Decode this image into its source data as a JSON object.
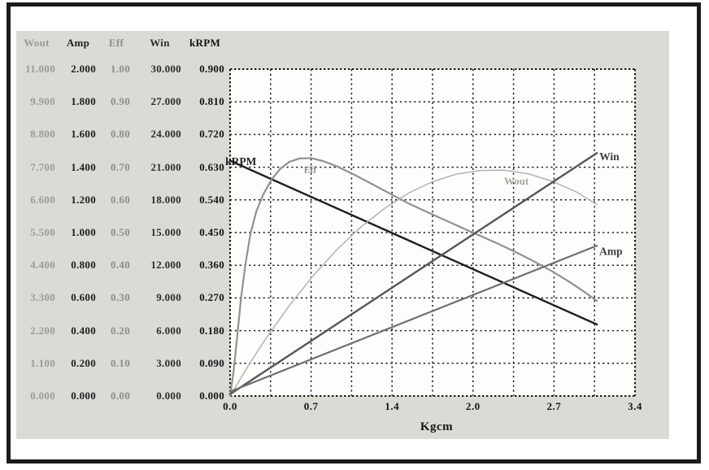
{
  "colors": {
    "frame": "#1b1b1b",
    "panel_bg": "#dbdbd6",
    "plot_bg": "#fdfdfc",
    "grid": "#1a1a1a",
    "tick_text": "#161616"
  },
  "table": {
    "columns": [
      {
        "name": "Wout",
        "color": "#9c9c96",
        "values": [
          "11.000",
          "9.900",
          "8.800",
          "7.700",
          "6.600",
          "5.500",
          "4.400",
          "3.300",
          "2.200",
          "1.100",
          "0.000"
        ]
      },
      {
        "name": "Amp",
        "color": "#1e1e1e",
        "values": [
          "2.000",
          "1.800",
          "1.600",
          "1.400",
          "1.200",
          "1.000",
          "0.800",
          "0.600",
          "0.400",
          "0.200",
          "0.000"
        ]
      },
      {
        "name": "Eff",
        "color": "#8e8e89",
        "values": [
          "1.00",
          "0.90",
          "0.80",
          "0.70",
          "0.60",
          "0.50",
          "0.40",
          "0.30",
          "0.20",
          "0.10",
          "0.00"
        ]
      },
      {
        "name": "Win",
        "color": "#2e2e2e",
        "values": [
          "30.000",
          "27.000",
          "24.000",
          "21.000",
          "18.000",
          "15.000",
          "12.000",
          "9.000",
          "6.000",
          "3.000",
          "0.000"
        ]
      },
      {
        "name": "kRPM",
        "color": "#141414",
        "values": [
          "0.900",
          "0.810",
          "0.720",
          "0.630",
          "0.540",
          "0.450",
          "0.360",
          "0.270",
          "0.180",
          "0.090",
          "0.000"
        ]
      }
    ]
  },
  "chart_data": {
    "type": "line",
    "title": "",
    "xlabel": "Kgcm",
    "ylabel": "",
    "xlim": [
      0,
      3.4
    ],
    "ylim": [
      0,
      0.9
    ],
    "x_divisions": 10,
    "y_divisions": 10,
    "grid": "dotted",
    "legend_position": "inline-labels",
    "x_ticks": [
      {
        "label": "0.0",
        "pos": 0.0
      },
      {
        "label": "0.7",
        "pos": 0.68
      },
      {
        "label": "1.4",
        "pos": 1.36
      },
      {
        "label": "2.0",
        "pos": 2.04
      },
      {
        "label": "2.7",
        "pos": 2.72
      },
      {
        "label": "3.4",
        "pos": 3.4
      }
    ],
    "series": [
      {
        "name": "kRPM",
        "axis_max": 0.9,
        "color": "#1f1f1f",
        "width": 2.4,
        "label": {
          "text": "kRPM",
          "x": -0.04,
          "v": 0.636,
          "color": "#1f1f1f",
          "size": 13.5
        },
        "points": [
          [
            0,
            0.648
          ],
          [
            3.08,
            0.197
          ]
        ]
      },
      {
        "name": "Eff",
        "axis_max": 1.0,
        "color": "#919191",
        "width": 2.2,
        "label": {
          "text": "Eff",
          "x": 0.62,
          "v": 0.615,
          "color": "#8c8c86",
          "size": 11.5
        },
        "points": [
          [
            0,
            0
          ],
          [
            0.03,
            0.07
          ],
          [
            0.06,
            0.165
          ],
          [
            0.09,
            0.265
          ],
          [
            0.13,
            0.365
          ],
          [
            0.17,
            0.445
          ],
          [
            0.22,
            0.508
          ],
          [
            0.28,
            0.556
          ],
          [
            0.35,
            0.597
          ],
          [
            0.42,
            0.625
          ],
          [
            0.5,
            0.645
          ],
          [
            0.58,
            0.654
          ],
          [
            0.68,
            0.655
          ],
          [
            0.78,
            0.647
          ],
          [
            0.9,
            0.632
          ],
          [
            1.05,
            0.608
          ],
          [
            1.2,
            0.582
          ],
          [
            1.35,
            0.556
          ],
          [
            1.5,
            0.53
          ],
          [
            1.65,
            0.507
          ],
          [
            1.8,
            0.485
          ],
          [
            1.95,
            0.463
          ],
          [
            2.1,
            0.441
          ],
          [
            2.25,
            0.419
          ],
          [
            2.4,
            0.396
          ],
          [
            2.55,
            0.371
          ],
          [
            2.7,
            0.344
          ],
          [
            2.85,
            0.314
          ],
          [
            2.97,
            0.288
          ],
          [
            3.08,
            0.262
          ]
        ]
      },
      {
        "name": "Wout",
        "axis_max": 11.0,
        "color": "#b3b3ae",
        "width": 1.5,
        "label": {
          "text": "Wout",
          "x": 2.3,
          "v": 0.582,
          "color": "#a5a59f",
          "size": 13
        },
        "points": [
          [
            0,
            0
          ],
          [
            0.15,
            0.082
          ],
          [
            0.3,
            0.158
          ],
          [
            0.5,
            0.25
          ],
          [
            0.7,
            0.332
          ],
          [
            0.9,
            0.404
          ],
          [
            1.1,
            0.466
          ],
          [
            1.3,
            0.517
          ],
          [
            1.5,
            0.559
          ],
          [
            1.7,
            0.59
          ],
          [
            1.9,
            0.611
          ],
          [
            2.1,
            0.621
          ],
          [
            2.3,
            0.622
          ],
          [
            2.5,
            0.612
          ],
          [
            2.7,
            0.592
          ],
          [
            2.9,
            0.563
          ],
          [
            3.08,
            0.527
          ]
        ]
      },
      {
        "name": "Win",
        "axis_max": 30.0,
        "color": "#565656",
        "width": 2.4,
        "label": {
          "text": "Win",
          "x": 3.1,
          "v": 0.649,
          "color": "#3d3d3d",
          "size": 13.5
        },
        "points": [
          [
            0,
            0.005
          ],
          [
            3.08,
            0.669
          ]
        ]
      },
      {
        "name": "Amp",
        "axis_max": 2.0,
        "color": "#6f6f6f",
        "width": 2.2,
        "label": {
          "text": "Amp",
          "x": 3.1,
          "v": 0.388,
          "color": "#3d3d3d",
          "size": 13.5
        },
        "points": [
          [
            0,
            0.012
          ],
          [
            3.08,
            0.414
          ]
        ]
      }
    ]
  }
}
